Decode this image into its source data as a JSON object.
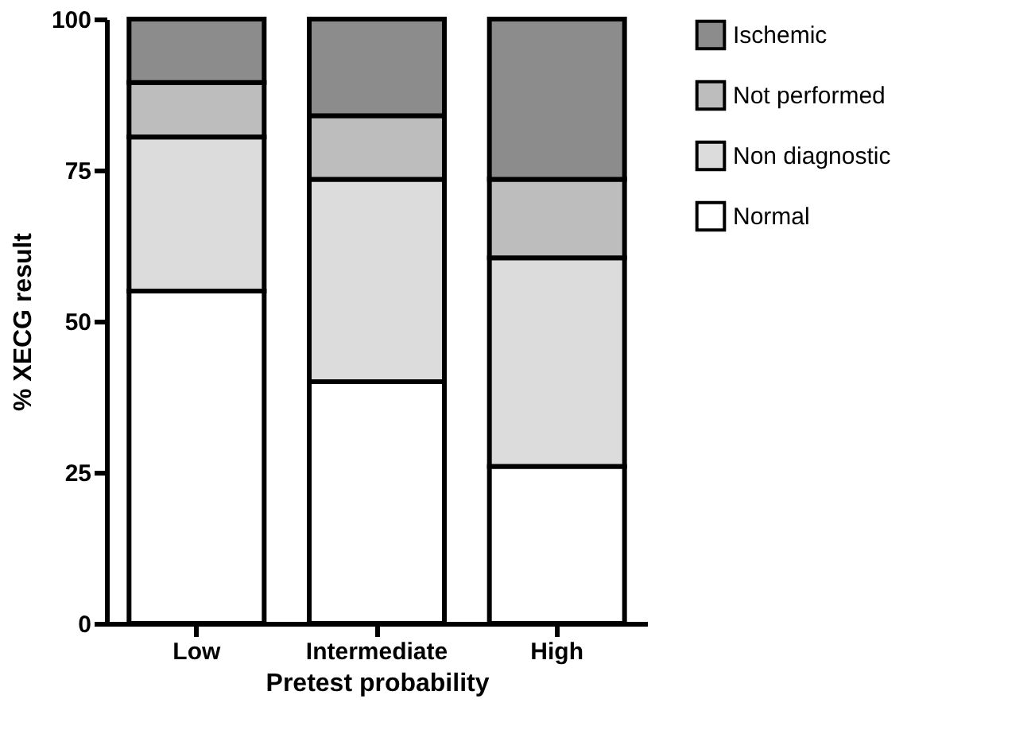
{
  "chart_data": {
    "type": "bar",
    "stacked": true,
    "xlabel": "Pretest probability",
    "ylabel": "% XECG result",
    "categories": [
      "Low",
      "Intermediate",
      "High"
    ],
    "series": [
      {
        "name": "Normal",
        "color": "#ffffff",
        "values": [
          55,
          40,
          26
        ]
      },
      {
        "name": "Non diagnostic",
        "color": "#dcdcdc",
        "values": [
          25.5,
          33.5,
          34.5
        ]
      },
      {
        "name": "Not performed",
        "color": "#bdbdbd",
        "values": [
          9,
          10.5,
          13
        ]
      },
      {
        "name": "Ischemic",
        "color": "#8c8c8c",
        "values": [
          10.5,
          16,
          26.5
        ]
      }
    ],
    "ylim": [
      0,
      100
    ],
    "yticks": [
      0,
      25,
      50,
      75,
      100
    ],
    "grid": false,
    "legend": "right"
  }
}
